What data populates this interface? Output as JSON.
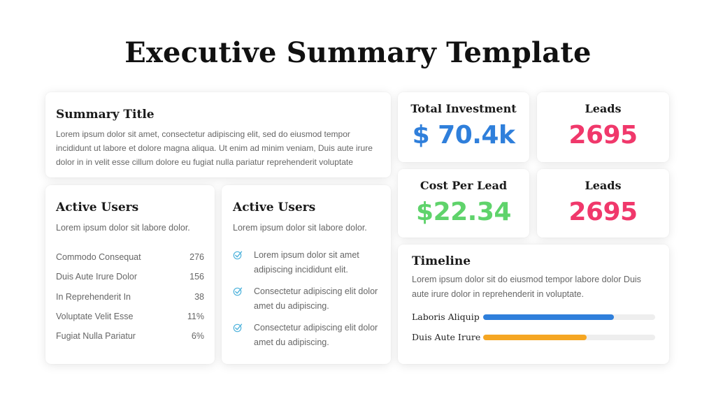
{
  "page": {
    "title": "Executive Summary Template"
  },
  "summary": {
    "title": "Summary Title",
    "body": "Lorem ipsum dolor sit amet, consectetur adipiscing elit, sed do eiusmod tempor incididunt ut labore et dolore magna aliqua. Ut enim ad minim veniam, Duis aute irure dolor in in velit esse cillum dolore eu fugiat nulla pariatur reprehenderit voluptate"
  },
  "users_stats": {
    "title": "Active Users",
    "subtitle": "Lorem ipsum dolor sit labore dolor.",
    "rows": [
      {
        "label": "Commodo Consequat",
        "value": "276"
      },
      {
        "label": "Duis Aute Irure Dolor",
        "value": "156"
      },
      {
        "label": "In Reprehenderit In",
        "value": "38"
      },
      {
        "label": "Voluptate Velit Esse",
        "value": "11%"
      },
      {
        "label": "Fugiat Nulla Pariatur",
        "value": "6%"
      }
    ]
  },
  "users_checks": {
    "title": "Active Users",
    "subtitle": "Lorem ipsum dolor sit labore dolor.",
    "icon": "check-icon",
    "icon_color": "#4fb3dc",
    "items": [
      "Lorem ipsum dolor sit amet adipiscing incididunt elit.",
      "Consectetur adipiscing elit dolor amet du adipiscing.",
      "Consectetur adipiscing elit dolor amet du adipiscing."
    ]
  },
  "kpis": [
    {
      "label": "Total Investment",
      "value": "$ 70.4k",
      "color": "#2f7fdb"
    },
    {
      "label": "Leads",
      "value": "2695",
      "color": "#f0386b"
    },
    {
      "label": "Cost Per Lead",
      "value": "$22.34",
      "color": "#5fd36b"
    },
    {
      "label": "Leads",
      "value": "2695",
      "color": "#f0386b"
    }
  ],
  "timeline": {
    "title": "Timeline",
    "body": "Lorem ipsum dolor sit do eiusmod tempor labore dolor Duis aute irure dolor in reprehenderit in voluptate.",
    "bars": [
      {
        "label": "Laboris Aliquip",
        "progress": 0.76,
        "color": "#2f7fdb"
      },
      {
        "label": "Duis Aute Irure",
        "progress": 0.6,
        "color": "#f5a623"
      }
    ]
  }
}
